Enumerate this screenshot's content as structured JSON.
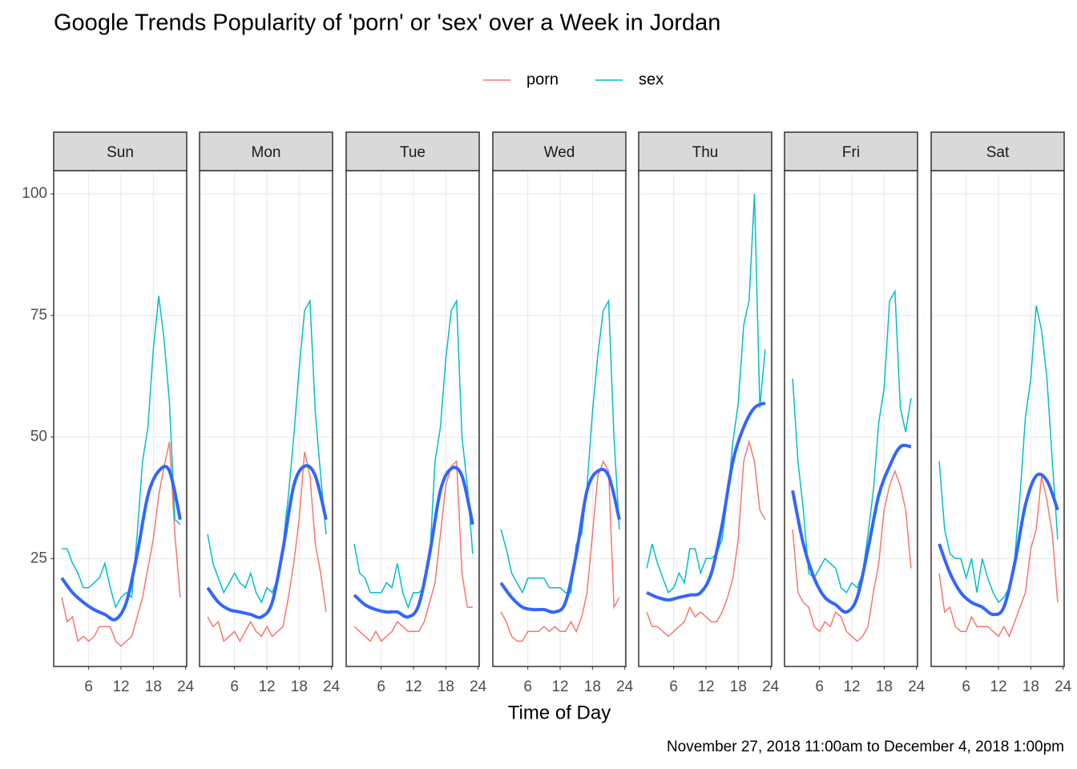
{
  "chart_data": {
    "type": "line",
    "title": "Google Trends Popularity of 'porn' or 'sex' over a Week in Jordan",
    "x_label": "Time of Day",
    "caption": "November 27, 2018 11:00am to December 4, 2018 1:00pm",
    "xlim": [
      -0.5,
      24.2
    ],
    "xticks": [
      6,
      12,
      18,
      24
    ],
    "ylim": [
      2.8,
      104.8
    ],
    "yticks": [
      25,
      50,
      75,
      100
    ],
    "grid": true,
    "x": [
      1,
      2,
      3,
      4,
      5,
      6,
      7,
      8,
      9,
      10,
      11,
      12,
      13,
      14,
      15,
      16,
      17,
      18,
      19,
      20,
      21,
      22,
      23
    ],
    "smooth_x": [
      1,
      3,
      5,
      7,
      9,
      11,
      13,
      15,
      17,
      19,
      21,
      23
    ],
    "smooth_color": "#3366FF",
    "legend": [
      {
        "name": "porn",
        "color": "#F8766D"
      },
      {
        "name": "sex",
        "color": "#00BFC4"
      }
    ],
    "facets": [
      {
        "label": "Sun",
        "series": [
          {
            "values": [
              17,
              12,
              13,
              8,
              9,
              8,
              9,
              11,
              11,
              11,
              8,
              7,
              8,
              9,
              13,
              17,
              23,
              29,
              38,
              44,
              49,
              30,
              17
            ]
          },
          {
            "values": [
              27,
              27,
              24,
              22,
              19,
              19,
              20,
              21,
              24,
              19,
              15,
              17,
              18,
              17,
              30,
              45,
              52,
              68,
              79,
              70,
              57,
              33,
              32
            ]
          }
        ],
        "smooth": [
          21,
          18,
          16,
          14.5,
          13.5,
          12.5,
          16,
          26,
          38,
          43,
          43,
          33
        ]
      },
      {
        "label": "Mon",
        "series": [
          {
            "values": [
              13,
              11,
              12,
              8,
              9,
              10,
              8,
              10,
              12,
              10,
              9,
              11,
              9,
              10,
              11,
              17,
              24,
              33,
              47,
              42,
              28,
              22,
              14
            ]
          },
          {
            "values": [
              30,
              24,
              21,
              18,
              20,
              22,
              20,
              19,
              22,
              18,
              16,
              19,
              18,
              21,
              28,
              38,
              50,
              64,
              76,
              78,
              55,
              42,
              30
            ]
          }
        ],
        "smooth": [
          19,
          16,
          14.5,
          14,
          13.5,
          13,
          16,
          27,
          40,
          44,
          42,
          33
        ]
      },
      {
        "label": "Tue",
        "series": [
          {
            "values": [
              11,
              10,
              9,
              8,
              10,
              8,
              9,
              10,
              12,
              11,
              10,
              10,
              10,
              12,
              16,
              20,
              30,
              40,
              44,
              45,
              22,
              15,
              15
            ]
          },
          {
            "values": [
              28,
              22,
              21,
              18,
              18,
              18,
              20,
              19,
              24,
              18,
              15,
              18,
              18,
              19,
              25,
              45,
              52,
              66,
              76,
              78,
              50,
              40,
              26
            ]
          }
        ],
        "smooth": [
          17.5,
          15.5,
          14.5,
          14,
          14,
          13,
          15.5,
          26,
          39,
          43.5,
          42,
          32
        ]
      },
      {
        "label": "Wed",
        "series": [
          {
            "values": [
              14,
              12,
              9,
              8,
              8,
              10,
              10,
              10,
              11,
              10,
              11,
              10,
              10,
              12,
              10,
              13,
              18,
              30,
              42,
              45,
              43,
              15,
              17
            ]
          },
          {
            "values": [
              31,
              27,
              22,
              20,
              18,
              21,
              21,
              21,
              21,
              19,
              19,
              19,
              18,
              18,
              28,
              30,
              40,
              55,
              67,
              76,
              78,
              50,
              31
            ]
          }
        ],
        "smooth": [
          20,
          17,
          15,
          14.5,
          14.5,
          14,
          16,
          26,
          39,
          43,
          42,
          33
        ]
      },
      {
        "label": "Thu",
        "series": [
          {
            "values": [
              14,
              11,
              11,
              10,
              9,
              10,
              11,
              12,
              15,
              13,
              14,
              13,
              12,
              12,
              14,
              17,
              21,
              29,
              45,
              49,
              45,
              35,
              33
            ]
          },
          {
            "values": [
              23,
              28,
              24,
              21,
              18,
              19,
              22,
              20,
              27,
              27,
              22,
              25,
              25,
              26,
              29,
              38,
              49,
              57,
              73,
              78,
              100,
              56,
              68
            ]
          }
        ],
        "smooth": [
          18,
          17,
          16.5,
          17,
          17.5,
          18,
          22,
          32,
          45,
          52,
          56,
          57
        ]
      },
      {
        "label": "Fri",
        "series": [
          {
            "values": [
              31,
              18,
              16,
              15,
              11,
              10,
              12,
              11,
              14,
              13,
              10,
              9,
              8,
              9,
              11,
              18,
              24,
              35,
              40,
              43,
              40,
              35,
              23
            ]
          },
          {
            "values": [
              62,
              45,
              35,
              22,
              21,
              23,
              25,
              24,
              23,
              19,
              18,
              20,
              19,
              22,
              30,
              39,
              53,
              60,
              78,
              80,
              56,
              51,
              58
            ]
          }
        ],
        "smooth": [
          39,
          28,
          21,
          17,
          15.5,
          14,
          17,
          27,
          38,
          44,
          48,
          48
        ]
      },
      {
        "label": "Sat",
        "series": [
          {
            "values": [
              22,
              14,
              15,
              11,
              10,
              10,
              13,
              11,
              11,
              11,
              10,
              9,
              11,
              9,
              12,
              15,
              18,
              27,
              31,
              42,
              37,
              30,
              16
            ]
          },
          {
            "values": [
              45,
              31,
              26,
              25,
              25,
              21,
              25,
              18,
              25,
              21,
              18,
              16,
              17,
              19,
              25,
              38,
              54,
              62,
              77,
              72,
              62,
              45,
              29
            ]
          }
        ],
        "smooth": [
          28,
          22,
          18,
          16,
          15,
          13.5,
          15,
          24,
          36,
          42,
          41,
          35
        ]
      }
    ]
  }
}
